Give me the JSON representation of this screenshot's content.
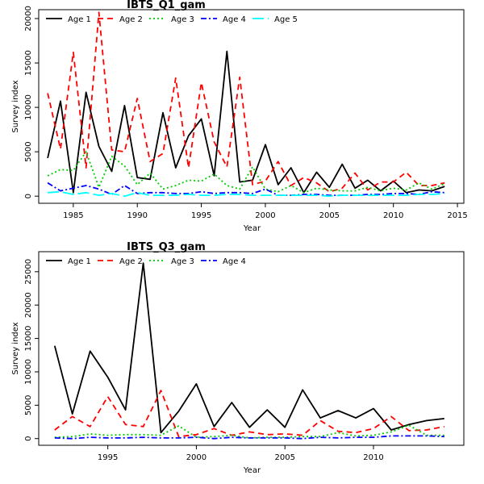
{
  "chart_data": [
    {
      "type": "line",
      "title": "IBTS_Q1_gam",
      "xlabel": "Year",
      "ylabel": "Survey index",
      "xlim": [
        1982.3,
        2015.5
      ],
      "ylim": [
        -800,
        21000
      ],
      "xticks": [
        1985,
        1990,
        1995,
        2000,
        2005,
        2010,
        2015
      ],
      "yticks": [
        0,
        5000,
        10000,
        15000,
        20000
      ],
      "legend": "top",
      "x": [
        1983,
        1984,
        1985,
        1986,
        1987,
        1988,
        1989,
        1990,
        1991,
        1992,
        1993,
        1994,
        1995,
        1996,
        1997,
        1998,
        1999,
        2000,
        2001,
        2002,
        2003,
        2004,
        2005,
        2006,
        2007,
        2008,
        2009,
        2010,
        2011,
        2012,
        2013,
        2014
      ],
      "series": [
        {
          "name": "Age 1",
          "color": "#000000",
          "dash": "",
          "values": [
            4300,
            10700,
            400,
            11700,
            5600,
            2800,
            10200,
            2100,
            1900,
            9400,
            3200,
            6800,
            8700,
            2300,
            16300,
            1600,
            1800,
            5800,
            1300,
            3200,
            400,
            2700,
            1000,
            3600,
            900,
            1800,
            600,
            1700,
            400,
            700,
            600,
            1100
          ]
        },
        {
          "name": "Age 2",
          "color": "#ff0000",
          "dash": "7,5",
          "values": [
            11600,
            5300,
            16200,
            3200,
            20700,
            5200,
            5000,
            11000,
            3900,
            4800,
            13300,
            3200,
            12800,
            6100,
            3300,
            13400,
            1300,
            1700,
            3900,
            1200,
            2100,
            1500,
            500,
            900,
            2600,
            700,
            1600,
            1600,
            2700,
            1200,
            1200,
            1500
          ]
        },
        {
          "name": "Age 3",
          "color": "#00cc00",
          "dash": "2,3",
          "values": [
            2300,
            3000,
            2900,
            5000,
            1000,
            4500,
            3400,
            1300,
            2600,
            800,
            1200,
            1800,
            1700,
            2500,
            1200,
            800,
            3300,
            800,
            500,
            1200,
            400,
            900,
            700,
            600,
            600,
            1000,
            600,
            900,
            700,
            1500,
            800,
            1400
          ]
        },
        {
          "name": "Age 4",
          "color": "#0000ff",
          "dash": "7,3,2,3",
          "values": [
            1500,
            600,
            900,
            1200,
            800,
            200,
            1200,
            300,
            400,
            400,
            300,
            300,
            500,
            300,
            400,
            400,
            300,
            800,
            100,
            100,
            200,
            200,
            100,
            100,
            100,
            200,
            200,
            300,
            300,
            200,
            500,
            400
          ]
        },
        {
          "name": "Age 5",
          "color": "#00ffff",
          "dash": "14,5",
          "values": [
            400,
            500,
            200,
            400,
            100,
            300,
            0,
            400,
            100,
            100,
            100,
            200,
            100,
            100,
            200,
            200,
            100,
            100,
            100,
            100,
            100,
            100,
            0,
            100,
            100,
            100,
            100,
            100,
            100,
            200,
            200,
            300
          ]
        }
      ]
    },
    {
      "type": "line",
      "title": "IBTS_Q3_gam",
      "xlabel": "Year",
      "ylabel": "Survey index",
      "xlim": [
        1991.1,
        2015.1
      ],
      "ylim": [
        -1000,
        28000
      ],
      "xticks": [
        1995,
        2000,
        2005,
        2010
      ],
      "yticks": [
        0,
        5000,
        10000,
        15000,
        20000,
        25000
      ],
      "legend": "top",
      "x": [
        1992,
        1993,
        1994,
        1995,
        1996,
        1997,
        1998,
        1999,
        2000,
        2001,
        2002,
        2003,
        2004,
        2005,
        2006,
        2007,
        2008,
        2009,
        2010,
        2011,
        2012,
        2013,
        2014
      ],
      "series": [
        {
          "name": "Age 1",
          "color": "#000000",
          "dash": "",
          "values": [
            13900,
            3700,
            13100,
            9200,
            4300,
            26300,
            900,
            4100,
            8200,
            1800,
            5400,
            1700,
            4300,
            1700,
            7300,
            3100,
            4200,
            3100,
            4500,
            1300,
            2100,
            2700,
            3000
          ]
        },
        {
          "name": "Age 2",
          "color": "#ff0000",
          "dash": "7,5",
          "values": [
            1300,
            3300,
            1800,
            6300,
            2100,
            1800,
            7200,
            300,
            600,
            1500,
            500,
            1000,
            600,
            700,
            500,
            2700,
            1100,
            900,
            1500,
            3300,
            1200,
            1300,
            1800
          ]
        },
        {
          "name": "Age 3",
          "color": "#00cc00",
          "dash": "2,3",
          "values": [
            200,
            300,
            700,
            500,
            600,
            600,
            500,
            1900,
            200,
            300,
            500,
            100,
            200,
            200,
            300,
            300,
            900,
            400,
            500,
            1000,
            2000,
            500,
            500
          ]
        },
        {
          "name": "Age 4",
          "color": "#0000ff",
          "dash": "7,3,2,3",
          "values": [
            100,
            0,
            200,
            100,
            100,
            200,
            100,
            100,
            200,
            0,
            200,
            100,
            100,
            100,
            0,
            200,
            100,
            200,
            200,
            400,
            400,
            400,
            300
          ]
        }
      ]
    }
  ]
}
